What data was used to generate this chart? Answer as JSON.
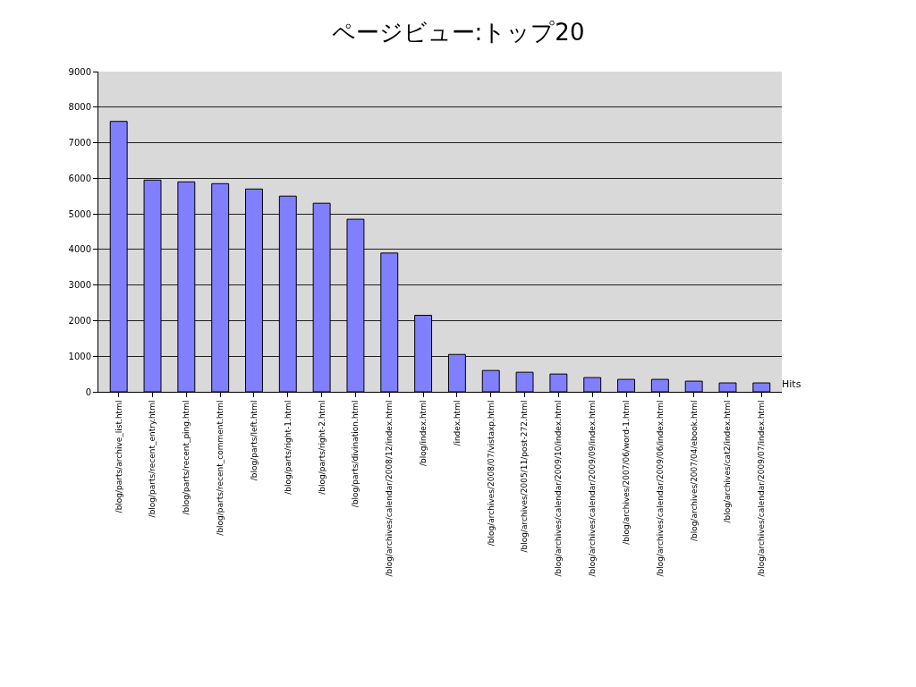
{
  "chart_data": {
    "type": "bar",
    "title": "ページビュー:トップ20",
    "categories": [
      "/blog/parts/archive_list.html",
      "/blog/parts/recent_entry.html",
      "/blog/parts/recent_ping.html",
      "/blog/parts/recent_comment.html",
      "/blog/parts/left.html",
      "/blog/parts/right-1.html",
      "/blog/parts/right-2.html",
      "/blog/parts/divination.html",
      "/blog/archives/calendar/2008/12/index.html",
      "/blog/index.html",
      "/index.html",
      "/blog/archives/2008/07/vistaxp.html",
      "/blog/archives/2005/11/post-272.html",
      "/blog/archives/calendar/2009/10/index.html",
      "/blog/archives/calendar/2009/09/index.html",
      "/blog/archives/2007/06/word-1.html",
      "/blog/archives/calendar/2009/06/index.html",
      "/blog/archives/2007/04/ebook.html",
      "/blog/archives/cat2/index.html",
      "/blog/archives/calendar/2009/07/index.html"
    ],
    "series": [
      {
        "name": "Hits",
        "color": "#8080ff",
        "values": [
          7600,
          5950,
          5900,
          5850,
          5700,
          5500,
          5300,
          4850,
          3900,
          2150,
          1050,
          600,
          550,
          500,
          400,
          350,
          350,
          300,
          250,
          250
        ]
      }
    ],
    "ylim": [
      0,
      9000
    ],
    "yticks": [
      0,
      1000,
      2000,
      3000,
      4000,
      5000,
      6000,
      7000,
      8000,
      9000
    ],
    "grid": true
  }
}
